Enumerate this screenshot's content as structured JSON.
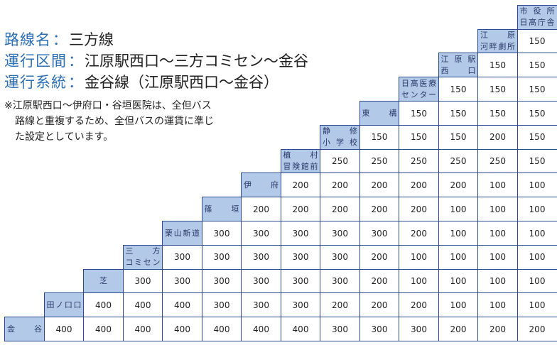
{
  "route": {
    "name_label": "路線名",
    "name_value": "三方線",
    "section_label": "運行区間",
    "section_value": "江原駅西口〜三方コミセン〜金谷",
    "system_label": "運行系統",
    "system_value": "金谷線（江原駅西口〜金谷）",
    "colon": "："
  },
  "note": {
    "line1": "※江原駅西口〜伊府口・谷垣医院は、全但バス",
    "line2": "路線と重複するため、全但バスの運賃に準じ",
    "line3": "た設定としています。"
  },
  "fare_table": {
    "stops": [
      {
        "line1": "市 役 所",
        "line2": "日高庁舎"
      },
      {
        "line1": "江　原",
        "line2": "河畔劇所"
      },
      {
        "line1": "江 原 駅",
        "line2": "西　口"
      },
      {
        "line1": "日高医療",
        "line2": "センター"
      },
      {
        "line1": "東　　構",
        "line2": ""
      },
      {
        "line1": "静　修",
        "line2": "小 学 校"
      },
      {
        "line1": "植　村",
        "line2": "冒険館前"
      },
      {
        "line1": "伊　府",
        "line2": ""
      },
      {
        "line1": "篠　垣",
        "line2": ""
      },
      {
        "line1": "栗山新道",
        "line2": ""
      },
      {
        "line1": "三　方",
        "line2": "コミセン"
      },
      {
        "line1": "芝",
        "line2": ""
      },
      {
        "line1": "田ノ口口",
        "line2": ""
      },
      {
        "line1": "金　谷",
        "line2": ""
      }
    ],
    "fares": [
      [],
      [
        "150"
      ],
      [
        "150",
        "150"
      ],
      [
        "150",
        "150",
        "150"
      ],
      [
        "150",
        "150",
        "150",
        "150"
      ],
      [
        "150",
        "150",
        "150",
        "200",
        "150"
      ],
      [
        "250",
        "250",
        "250",
        "250",
        "250",
        "150"
      ],
      [
        "200",
        "200",
        "200",
        "200",
        "200",
        "100",
        "100"
      ],
      [
        "200",
        "200",
        "200",
        "200",
        "200",
        "100",
        "100",
        "100"
      ],
      [
        "300",
        "300",
        "300",
        "300",
        "300",
        "200",
        "100",
        "100",
        "100"
      ],
      [
        "300",
        "300",
        "300",
        "300",
        "300",
        "200",
        "100",
        "100",
        "100",
        "100"
      ],
      [
        "300",
        "300",
        "300",
        "300",
        "300",
        "300",
        "200",
        "100",
        "100",
        "100",
        "100"
      ],
      [
        "400",
        "400",
        "400",
        "300",
        "300",
        "300",
        "200",
        "200",
        "200",
        "100",
        "100",
        "100"
      ],
      [
        "400",
        "400",
        "400",
        "400",
        "400",
        "400",
        "400",
        "300",
        "300",
        "300",
        "200",
        "200",
        "200"
      ]
    ]
  }
}
